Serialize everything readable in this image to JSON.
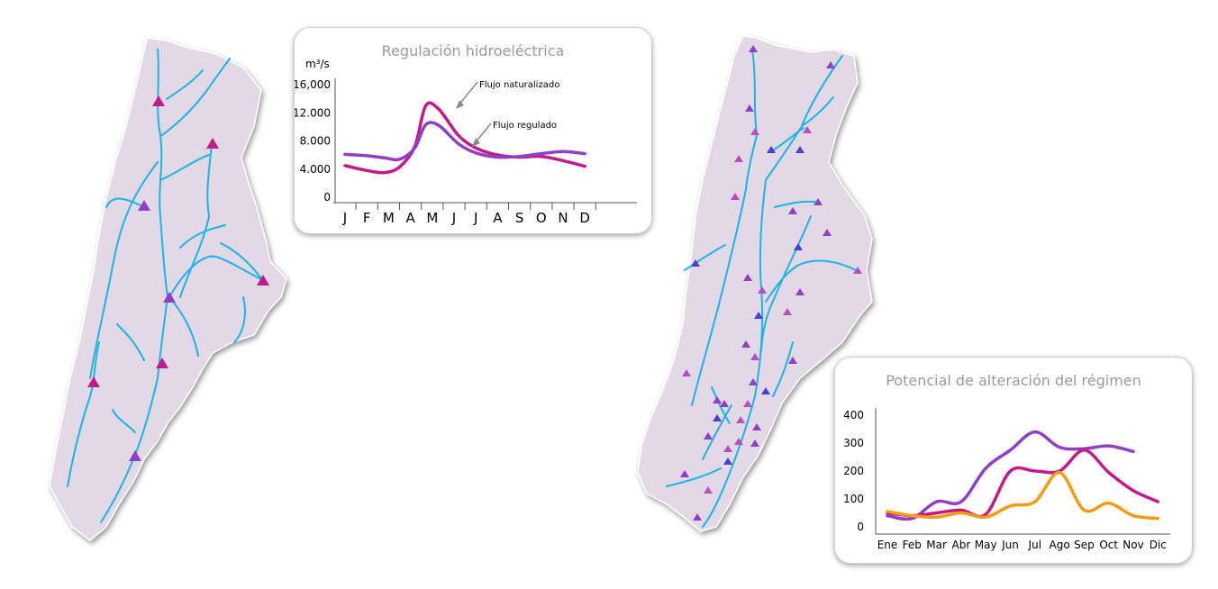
{
  "colors": {
    "basin_fill": "#e2d8e6",
    "river": "#1cb3e6",
    "dam_magenta": "#c21a86",
    "dam_purple": "#8f3fc4",
    "dam_blue": "#4a3fc8",
    "dam_pink": "#b64fc0"
  },
  "chart_data": [
    {
      "type": "line",
      "title": "Regulación hidroeléctrica",
      "ylabel": "m³/s",
      "y_tick_labels": [
        "16,000",
        "12.000",
        "8.000",
        "4.000",
        "0"
      ],
      "y_ticks": [
        16000,
        12000,
        8000,
        4000,
        0
      ],
      "ylim": [
        0,
        16000
      ],
      "categories": [
        "J",
        "F",
        "M",
        "A",
        "M",
        "J",
        "J",
        "A",
        "S",
        "O",
        "N",
        "D"
      ],
      "series": [
        {
          "name": "Flujo naturalizado",
          "color": "#c21a86",
          "x": [
            0,
            1,
            1.8,
            2.5,
            3.2,
            3.7,
            4.3,
            5.2,
            6.0,
            7.0,
            8.0,
            9.0,
            10.0,
            11.0
          ],
          "values": [
            4500,
            3800,
            3500,
            4300,
            7200,
            13000,
            12500,
            8800,
            7000,
            6000,
            5700,
            5800,
            5200,
            4400
          ]
        },
        {
          "name": "Flujo regulado",
          "color": "#8f3fc4",
          "x": [
            0,
            1,
            1.8,
            2.5,
            3.2,
            3.7,
            4.3,
            5.2,
            6.0,
            7.0,
            8.0,
            9.0,
            10.0,
            11.0
          ],
          "values": [
            6100,
            5900,
            5600,
            5400,
            7000,
            10300,
            10200,
            7600,
            6300,
            5700,
            5800,
            6200,
            6500,
            6200
          ]
        }
      ],
      "annotations": [
        "Flujo naturalizado",
        "Flujo regulado"
      ]
    },
    {
      "type": "line",
      "title": "Potencial de alteración del régimen",
      "y_ticks": [
        0,
        100,
        200,
        300,
        400
      ],
      "ylim": [
        0,
        400
      ],
      "categories": [
        "Ene",
        "Feb",
        "Mar",
        "Abr",
        "May",
        "Jun",
        "Jul",
        "Ago",
        "Sep",
        "Oct",
        "Nov",
        "Dic"
      ],
      "series": [
        {
          "color": "#8f3fc4",
          "values": [
            40,
            30,
            90,
            90,
            210,
            275,
            340,
            285,
            280,
            290,
            270,
            null
          ],
          "x": [
            0,
            1,
            2,
            3,
            4,
            5,
            6,
            7,
            8,
            9,
            10,
            11
          ]
        },
        {
          "color": "#c21a86",
          "values": [
            50,
            40,
            50,
            60,
            45,
            200,
            200,
            200,
            275,
            195,
            130,
            90
          ],
          "x": [
            0,
            1,
            2,
            3,
            4,
            5,
            6,
            7,
            8,
            9,
            10,
            11
          ]
        },
        {
          "color": "#f39c12",
          "values": [
            55,
            40,
            35,
            50,
            35,
            75,
            90,
            195,
            60,
            85,
            40,
            30
          ],
          "x": [
            0,
            1,
            2,
            3,
            4,
            5,
            6,
            7,
            8,
            9,
            10,
            11
          ]
        }
      ]
    }
  ]
}
